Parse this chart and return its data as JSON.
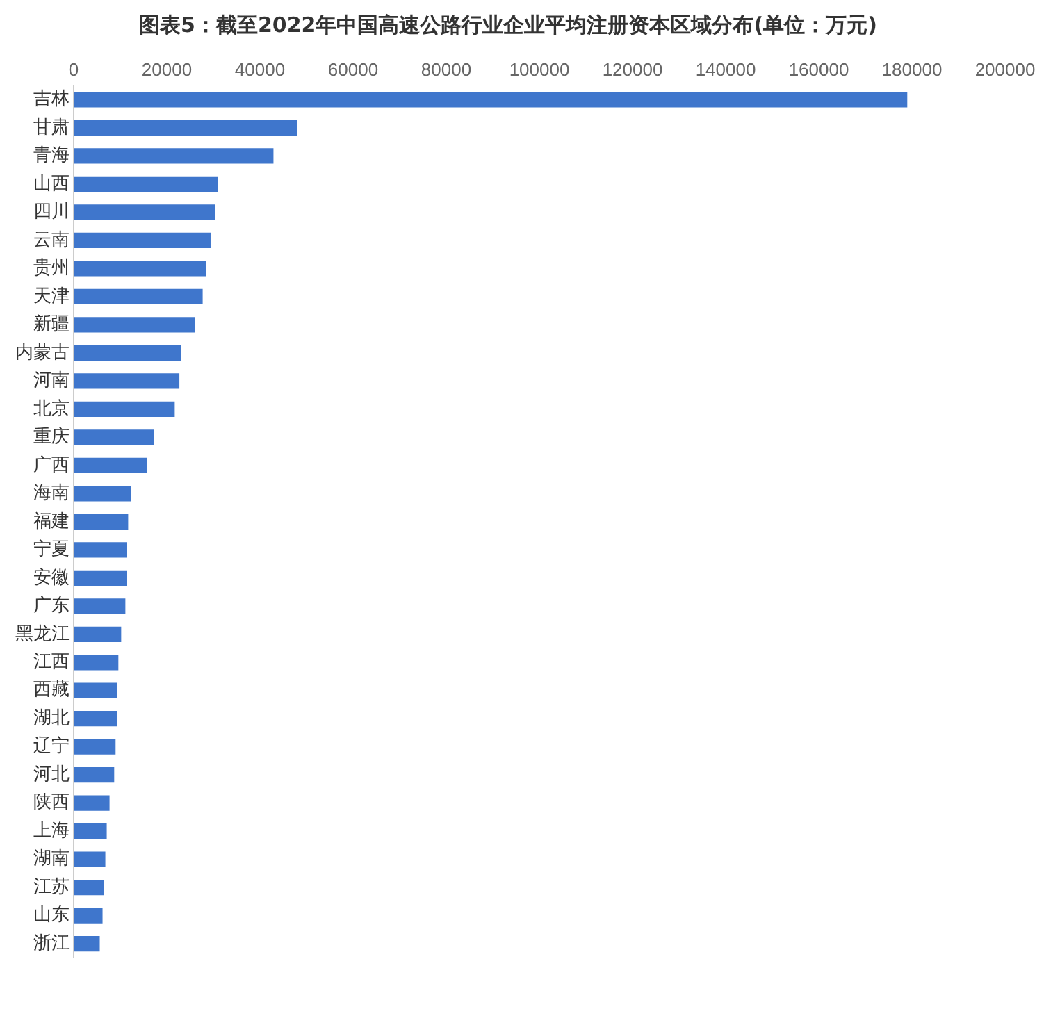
{
  "chart_data": {
    "type": "bar",
    "orientation": "horizontal",
    "title": "图表5：截至2022年中国高速公路行业企业平均注册资本区域分布(单位：万元)",
    "categories": [
      "吉林",
      "甘肃",
      "青海",
      "山西",
      "四川",
      "云南",
      "贵州",
      "天津",
      "新疆",
      "内蒙古",
      "河南",
      "北京",
      "重庆",
      "广西",
      "海南",
      "福建",
      "宁夏",
      "安徽",
      "广东",
      "黑龙江",
      "江西",
      "西藏",
      "湖北",
      "辽宁",
      "河北",
      "陕西",
      "上海",
      "湖南",
      "江苏",
      "山东",
      "浙江"
    ],
    "values": [
      179000,
      48000,
      42900,
      30900,
      30300,
      29400,
      28500,
      27700,
      26000,
      23000,
      22700,
      21700,
      17200,
      15700,
      12300,
      11700,
      11400,
      11400,
      11100,
      10200,
      9600,
      9300,
      9300,
      9000,
      8700,
      7700,
      7100,
      6800,
      6500,
      6200,
      5600
    ],
    "color": "#3f76cc",
    "xlim": [
      0,
      200000
    ],
    "xticks": [
      0,
      20000,
      40000,
      60000,
      80000,
      100000,
      120000,
      140000,
      160000,
      180000,
      200000
    ],
    "grid": false,
    "legend": false
  }
}
